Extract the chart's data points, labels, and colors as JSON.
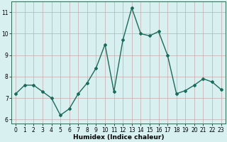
{
  "x": [
    0,
    1,
    2,
    3,
    4,
    5,
    6,
    7,
    8,
    9,
    10,
    11,
    12,
    13,
    14,
    15,
    16,
    17,
    18,
    19,
    20,
    21,
    22,
    23
  ],
  "y": [
    7.2,
    7.6,
    7.6,
    7.3,
    7.0,
    6.2,
    6.5,
    7.2,
    7.7,
    8.4,
    9.5,
    7.3,
    9.7,
    11.2,
    10.0,
    9.9,
    10.1,
    9.0,
    7.2,
    7.35,
    7.6,
    7.9,
    7.75,
    7.4
  ],
  "line_color": "#1a6b5a",
  "marker": "D",
  "markersize": 2.0,
  "linewidth": 1.0,
  "xlabel": "Humidex (Indice chaleur)",
  "xlim": [
    -0.5,
    23.5
  ],
  "ylim": [
    5.8,
    11.5
  ],
  "yticks": [
    6,
    7,
    8,
    9,
    10,
    11
  ],
  "xticks": [
    0,
    1,
    2,
    3,
    4,
    5,
    6,
    7,
    8,
    9,
    10,
    11,
    12,
    13,
    14,
    15,
    16,
    17,
    18,
    19,
    20,
    21,
    22,
    23
  ],
  "bg_color": "#d9f0f0",
  "grid_color": "#c8aaaa",
  "axis_fontsize": 6.5,
  "tick_fontsize": 5.5
}
